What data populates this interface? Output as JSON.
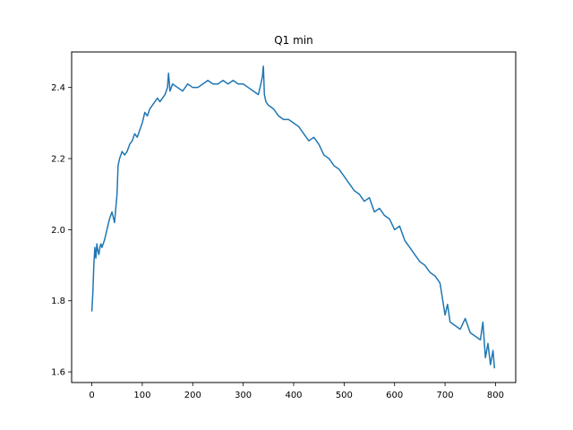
{
  "chart_data": {
    "type": "line",
    "title": "Q1 min",
    "xlabel": "",
    "ylabel": "",
    "xlim": [
      -40,
      840
    ],
    "ylim": [
      1.57,
      2.5
    ],
    "xticks": [
      0,
      100,
      200,
      300,
      400,
      500,
      600,
      700,
      800
    ],
    "yticks": [
      1.6,
      1.8,
      2.0,
      2.2,
      2.4
    ],
    "ytick_labels": [
      "1.6",
      "1.8",
      "2.0",
      "2.2",
      "2.4"
    ],
    "grid": false,
    "legend": "none",
    "series": [
      {
        "color": "#1f77b4",
        "x": [
          0,
          2,
          4,
          6,
          8,
          10,
          12,
          14,
          16,
          18,
          20,
          25,
          30,
          35,
          40,
          45,
          50,
          52,
          55,
          60,
          65,
          70,
          75,
          80,
          85,
          90,
          95,
          100,
          105,
          110,
          115,
          120,
          125,
          130,
          135,
          140,
          145,
          150,
          152,
          155,
          160,
          170,
          180,
          190,
          200,
          210,
          220,
          230,
          240,
          250,
          260,
          270,
          280,
          290,
          300,
          310,
          320,
          330,
          335,
          338,
          340,
          342,
          345,
          350,
          360,
          370,
          380,
          390,
          400,
          410,
          420,
          430,
          440,
          450,
          460,
          470,
          480,
          490,
          500,
          510,
          520,
          530,
          540,
          550,
          560,
          570,
          580,
          590,
          600,
          610,
          620,
          630,
          640,
          650,
          660,
          670,
          680,
          690,
          700,
          705,
          710,
          720,
          730,
          740,
          750,
          760,
          770,
          775,
          780,
          785,
          790,
          795,
          798
        ],
        "y": [
          1.77,
          1.82,
          1.9,
          1.95,
          1.92,
          1.96,
          1.94,
          1.93,
          1.95,
          1.96,
          1.95,
          1.97,
          2.0,
          2.03,
          2.05,
          2.02,
          2.1,
          2.18,
          2.2,
          2.22,
          2.21,
          2.22,
          2.24,
          2.25,
          2.27,
          2.26,
          2.28,
          2.3,
          2.33,
          2.32,
          2.34,
          2.35,
          2.36,
          2.37,
          2.36,
          2.37,
          2.38,
          2.4,
          2.44,
          2.39,
          2.41,
          2.4,
          2.39,
          2.41,
          2.4,
          2.4,
          2.41,
          2.42,
          2.41,
          2.41,
          2.42,
          2.41,
          2.42,
          2.41,
          2.41,
          2.4,
          2.39,
          2.38,
          2.41,
          2.43,
          2.46,
          2.38,
          2.36,
          2.35,
          2.34,
          2.32,
          2.31,
          2.31,
          2.3,
          2.29,
          2.27,
          2.25,
          2.26,
          2.24,
          2.21,
          2.2,
          2.18,
          2.17,
          2.15,
          2.13,
          2.11,
          2.1,
          2.08,
          2.09,
          2.05,
          2.06,
          2.04,
          2.03,
          2.0,
          2.01,
          1.97,
          1.95,
          1.93,
          1.91,
          1.9,
          1.88,
          1.87,
          1.85,
          1.76,
          1.79,
          1.74,
          1.73,
          1.72,
          1.75,
          1.71,
          1.7,
          1.69,
          1.74,
          1.64,
          1.68,
          1.62,
          1.66,
          1.61
        ]
      }
    ]
  }
}
